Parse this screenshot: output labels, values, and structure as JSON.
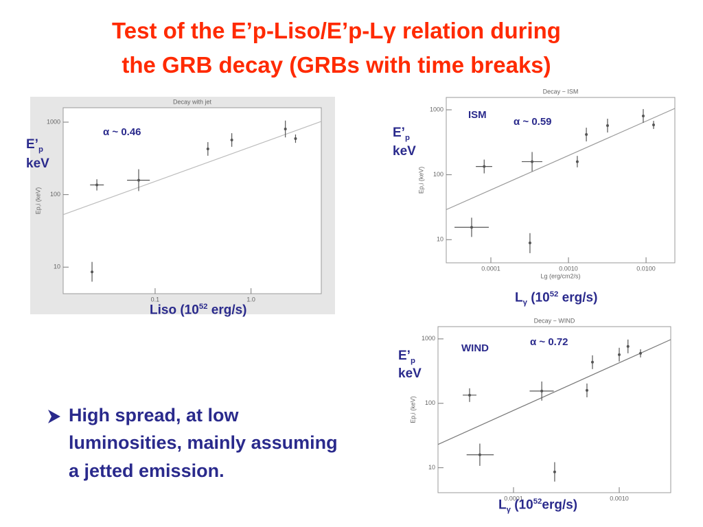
{
  "title": [
    "Test of the E’p-Liso/E’p-Lγ relation during",
    "the GRB decay (GRBs  with time breaks)"
  ],
  "bullet": [
    "High spread, at low",
    "luminosities, mainly assuming",
    "a jetted emission."
  ],
  "chart_data": [
    {
      "type": "scatter",
      "title": "Decay with jet",
      "ylabel_inner": "Ep,i (keV)",
      "ylabel": {
        "main": "E’",
        "sub": "p",
        "unit": "keV"
      },
      "xlabel": {
        "main": "Liso (10",
        "sup": "52",
        "rest": " erg/s)"
      },
      "annotation": "α ~ 0.46",
      "log_x": true,
      "log_y": true,
      "color": "#555555",
      "fit_color": "#bbbbbb",
      "panel": "#e6e6e6",
      "xlim": [
        0.011,
        5.4
      ],
      "ylim": [
        4.3,
        1580
      ],
      "xticks": [
        0.1,
        {
          "value": 1,
          "label": "1.0"
        }
      ],
      "yticks": [
        10,
        100,
        1000
      ],
      "x": [
        0.022,
        0.0247,
        0.0674,
        0.355,
        0.63,
        2.28,
        2.91
      ],
      "values": [
        8.6,
        136,
        158,
        427,
        567,
        804,
        592
      ],
      "x_range": [
        null,
        [
          0.021,
          0.0292
        ],
        [
          0.051,
          0.088
        ],
        null,
        null,
        null,
        null
      ],
      "y_range": [
        [
          6.3,
          11.8
        ],
        [
          114,
          163
        ],
        [
          112,
          224
        ],
        [
          344,
          530
        ],
        [
          457,
          704
        ],
        [
          616,
          1050
        ],
        [
          518,
          676
        ]
      ],
      "fit": {
        "x": [
          0.011,
          5.4
        ],
        "values": [
          53,
          1022
        ]
      }
    },
    {
      "type": "scatter",
      "title": "Decay − ISM",
      "ylabel_inner": "Ep,i (keV)",
      "xlabel_inner": "Lg (erg/cm2/s)",
      "ylabel": {
        "main": "E’",
        "sub": "p",
        "unit": "keV"
      },
      "xlabel": {
        "main": "L",
        "sub": "γ",
        "pre": " (10",
        "sup": "52",
        "rest": " erg/s)"
      },
      "annotation": "α ~ 0.59",
      "tag": "ISM",
      "log_x": true,
      "log_y": true,
      "color": "#555555",
      "fit_color": "#999999",
      "panel": "#ffffff",
      "xlim": [
        2.66e-05,
        0.0235
      ],
      "ylim": [
        4.4,
        1550
      ],
      "xticks": [
        0.0001,
        {
          "value": 0.001,
          "label": "0.0010"
        },
        {
          "value": 0.01,
          "label": "0.0100"
        }
      ],
      "yticks": [
        10,
        100,
        1000
      ],
      "x": [
        5.65e-05,
        8.2e-05,
        0.000319,
        0.00034,
        0.0013,
        0.0017,
        0.00319,
        0.0092,
        0.0125
      ],
      "values": [
        15.5,
        134,
        8.9,
        159,
        159,
        416,
        571,
        803,
        585
      ],
      "x_range": [
        [
          3.4e-05,
          9.4e-05
        ],
        [
          6.4e-05,
          0.000104
        ],
        null,
        [
          0.00025,
          0.00046
        ],
        null,
        null,
        null,
        null,
        null
      ],
      "y_range": [
        [
          11,
          21.8
        ],
        [
          105,
          171
        ],
        [
          6.2,
          12.6
        ],
        [
          113,
          224
        ],
        [
          130,
          195
        ],
        [
          326,
          530
        ],
        [
          447,
          729
        ],
        [
          629,
          1026
        ],
        [
          507,
          675
        ]
      ],
      "fit": {
        "x": [
          2.66e-05,
          0.0235
        ],
        "values": [
          29,
          1050
        ]
      }
    },
    {
      "type": "scatter",
      "title": "Decay − WIND",
      "ylabel_inner": "Ep,i (keV)",
      "ylabel": {
        "main": "E’",
        "sub": "p",
        "unit": "keV"
      },
      "xlabel": {
        "main": "L",
        "sub": "γ",
        "pre": " (10",
        "sup": "52",
        "rest": "erg/s)"
      },
      "annotation": "α ~ 0.72",
      "tag": "WIND",
      "log_x": true,
      "log_y": true,
      "color": "#555555",
      "fit_color": "#777777",
      "panel": "#ffffff",
      "xlim": [
        1.93e-05,
        0.00307
      ],
      "ylim": [
        4.1,
        1550
      ],
      "xticks": [
        0.0001,
        {
          "value": 0.001,
          "label": "0.0010"
        }
      ],
      "yticks": [
        10,
        100,
        1000
      ],
      "x": [
        3.84e-05,
        4.8e-05,
        0.000185,
        0.000245,
        0.000495,
        0.000558,
        0.001,
        0.00121,
        0.00159
      ],
      "values": [
        134,
        15.9,
        155,
        8.6,
        159,
        435,
        569,
        764,
        598
      ],
      "x_range": [
        [
          3.31e-05,
          4.46e-05
        ],
        [
          3.6e-05,
          6.5e-05
        ],
        [
          0.000142,
          0.00024
        ],
        null,
        null,
        null,
        null,
        null,
        null
      ],
      "y_range": [
        [
          105,
          171
        ],
        [
          10.7,
          23.7
        ],
        [
          110,
          218
        ],
        [
          6.1,
          12.2
        ],
        [
          124,
          203
        ],
        [
          340,
          556
        ],
        [
          445,
          728
        ],
        [
          598,
          977
        ],
        [
          516,
          690
        ]
      ],
      "fit": {
        "x": [
          1.93e-05,
          0.00307
        ],
        "values": [
          23,
          976
        ]
      }
    }
  ]
}
